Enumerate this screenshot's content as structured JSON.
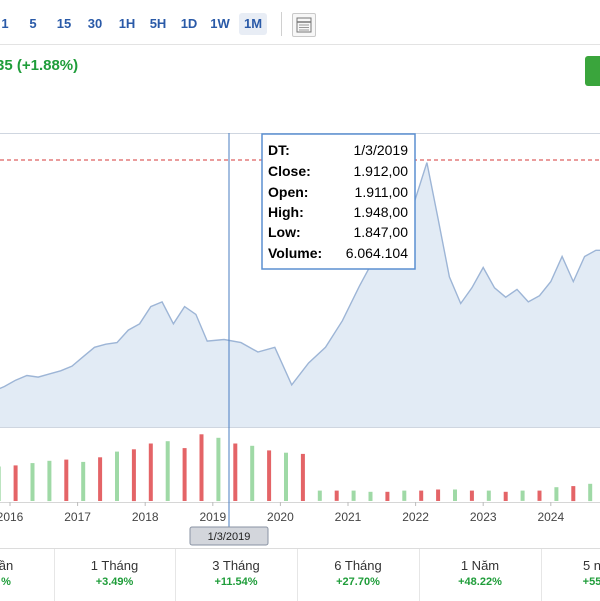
{
  "toolbar": {
    "timeframes": [
      "1",
      "5",
      "15",
      "30",
      "1H",
      "5H",
      "1D",
      "1W",
      "1M"
    ],
    "active": "1M",
    "icons": [
      "chart-settings-icon"
    ]
  },
  "header": {
    "price_change": "35 (+1.88%)"
  },
  "chart_data": {
    "type": "area",
    "x_ticks": [
      "2016",
      "2017",
      "2018",
      "2019",
      "2020",
      "2021",
      "2022",
      "2023",
      "2024"
    ],
    "reference_line": "dashed-red",
    "crosshair_label": "1/3/2019",
    "tooltip": {
      "rows": [
        {
          "label": "DT:",
          "value": "1/3/2019"
        },
        {
          "label": "Close:",
          "value": "1.912,00"
        },
        {
          "label": "Open:",
          "value": "1.911,00"
        },
        {
          "label": "High:",
          "value": "1.948,00"
        },
        {
          "label": "Low:",
          "value": "1.847,00"
        },
        {
          "label": "Volume:",
          "value": "6.064.104"
        }
      ]
    },
    "price_series": [
      [
        "2015-08",
        860
      ],
      [
        "2015-10",
        900
      ],
      [
        "2015-12",
        930
      ],
      [
        "2016-02",
        970
      ],
      [
        "2016-04",
        1000
      ],
      [
        "2016-06",
        990
      ],
      [
        "2016-08",
        1010
      ],
      [
        "2016-10",
        1030
      ],
      [
        "2016-12",
        1060
      ],
      [
        "2017-02",
        1120
      ],
      [
        "2017-04",
        1180
      ],
      [
        "2017-06",
        1200
      ],
      [
        "2017-08",
        1210
      ],
      [
        "2017-10",
        1290
      ],
      [
        "2017-12",
        1330
      ],
      [
        "2018-02",
        1440
      ],
      [
        "2018-04",
        1470
      ],
      [
        "2018-06",
        1330
      ],
      [
        "2018-08",
        1440
      ],
      [
        "2018-10",
        1390
      ],
      [
        "2018-12",
        1220
      ],
      [
        "2019-03",
        1230
      ],
      [
        "2019-06",
        1210
      ],
      [
        "2019-09",
        1150
      ],
      [
        "2019-12",
        1180
      ],
      [
        "2020-03",
        940
      ],
      [
        "2020-06",
        1080
      ],
      [
        "2020-09",
        1180
      ],
      [
        "2020-12",
        1350
      ],
      [
        "2021-03",
        1570
      ],
      [
        "2021-06",
        1770
      ],
      [
        "2021-09",
        1880
      ],
      [
        "2021-12",
        2020
      ],
      [
        "2022-03",
        2360
      ],
      [
        "2022-05",
        2000
      ],
      [
        "2022-07",
        1630
      ],
      [
        "2022-09",
        1460
      ],
      [
        "2022-11",
        1560
      ],
      [
        "2023-01",
        1690
      ],
      [
        "2023-03",
        1560
      ],
      [
        "2023-05",
        1500
      ],
      [
        "2023-07",
        1550
      ],
      [
        "2023-09",
        1470
      ],
      [
        "2023-11",
        1510
      ],
      [
        "2024-01",
        1600
      ],
      [
        "2024-03",
        1760
      ],
      [
        "2024-05",
        1600
      ],
      [
        "2024-07",
        1760
      ],
      [
        "2024-09",
        1800
      ]
    ],
    "volume_series": [
      [
        "2015-08",
        3.2,
        "up"
      ],
      [
        "2015-11",
        3.0,
        "up"
      ],
      [
        "2016-02",
        3.1,
        "down"
      ],
      [
        "2016-05",
        3.3,
        "up"
      ],
      [
        "2016-08",
        3.5,
        "up"
      ],
      [
        "2016-11",
        3.6,
        "down"
      ],
      [
        "2017-02",
        3.4,
        "up"
      ],
      [
        "2017-05",
        3.8,
        "down"
      ],
      [
        "2017-08",
        4.3,
        "up"
      ],
      [
        "2017-11",
        4.5,
        "down"
      ],
      [
        "2018-02",
        5.0,
        "down"
      ],
      [
        "2018-05",
        5.2,
        "up"
      ],
      [
        "2018-08",
        4.6,
        "down"
      ],
      [
        "2018-11",
        5.8,
        "down"
      ],
      [
        "2019-02",
        5.5,
        "up"
      ],
      [
        "2019-05",
        5.0,
        "down"
      ],
      [
        "2019-08",
        4.8,
        "up"
      ],
      [
        "2019-11",
        4.4,
        "down"
      ],
      [
        "2020-02",
        4.2,
        "up"
      ],
      [
        "2020-05",
        4.1,
        "down"
      ],
      [
        "2020-08",
        0.9,
        "up"
      ],
      [
        "2020-11",
        0.9,
        "down"
      ],
      [
        "2021-02",
        0.9,
        "up"
      ],
      [
        "2021-05",
        0.8,
        "up"
      ],
      [
        "2021-08",
        0.8,
        "down"
      ],
      [
        "2021-11",
        0.9,
        "up"
      ],
      [
        "2022-02",
        0.9,
        "down"
      ],
      [
        "2022-05",
        1.0,
        "down"
      ],
      [
        "2022-08",
        1.0,
        "up"
      ],
      [
        "2022-11",
        0.9,
        "down"
      ],
      [
        "2023-02",
        0.9,
        "up"
      ],
      [
        "2023-05",
        0.8,
        "down"
      ],
      [
        "2023-08",
        0.9,
        "up"
      ],
      [
        "2023-11",
        0.9,
        "down"
      ],
      [
        "2024-02",
        1.2,
        "up"
      ],
      [
        "2024-05",
        1.3,
        "down"
      ],
      [
        "2024-08",
        1.5,
        "up"
      ]
    ],
    "colors": {
      "area_fill": "#e2ebf5",
      "line": "#9db5d6",
      "up": "#9fd9a6",
      "down": "#e46467",
      "ref_line": "#d43a3a",
      "crosshair": "#4a7ec2"
    }
  },
  "periods": [
    {
      "label": "ần",
      "value": "%"
    },
    {
      "label": "1 Tháng",
      "value": "+3.49%"
    },
    {
      "label": "3 Tháng",
      "value": "+11.54%"
    },
    {
      "label": "6 Tháng",
      "value": "+27.70%"
    },
    {
      "label": "1 Năm",
      "value": "+48.22%"
    },
    {
      "label": "5 n",
      "value": "+55"
    }
  ]
}
